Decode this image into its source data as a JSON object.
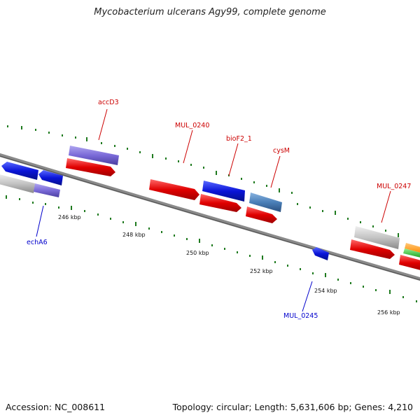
{
  "title": "Mycobacterium ulcerans Agy99, complete genome",
  "footer": {
    "accession": "Accession: NC_008611",
    "summary": "Topology: circular; Length: 5,631,606 bp; Genes: 4,210"
  },
  "colors": {
    "forward_cds": "#e00000",
    "reverse_cds": "#0a14d8",
    "purple_feature": "#7a6ad8",
    "gray_feature": "#c4c4c4",
    "steelblue_feature": "#4a7fb8",
    "orange_feature": "#ff9a14",
    "green_feature": "#2cc82c",
    "backbone": "#6e6e6e",
    "tick": "#1f7a1f",
    "label_red": "#cc0000",
    "label_blue": "#0000cc"
  },
  "scale_labels": [
    "246 kbp",
    "248 kbp",
    "250 kbp",
    "252 kbp",
    "254 kbp",
    "256 kbp"
  ],
  "gene_labels": {
    "accD3": "accD3",
    "MUL_0240": "MUL_0240",
    "bioF2_1": "bioF2_1",
    "cysM": "cysM",
    "MUL_0247": "MUL_0247",
    "echA6": "echA6",
    "MUL_0245": "MUL_0245"
  }
}
